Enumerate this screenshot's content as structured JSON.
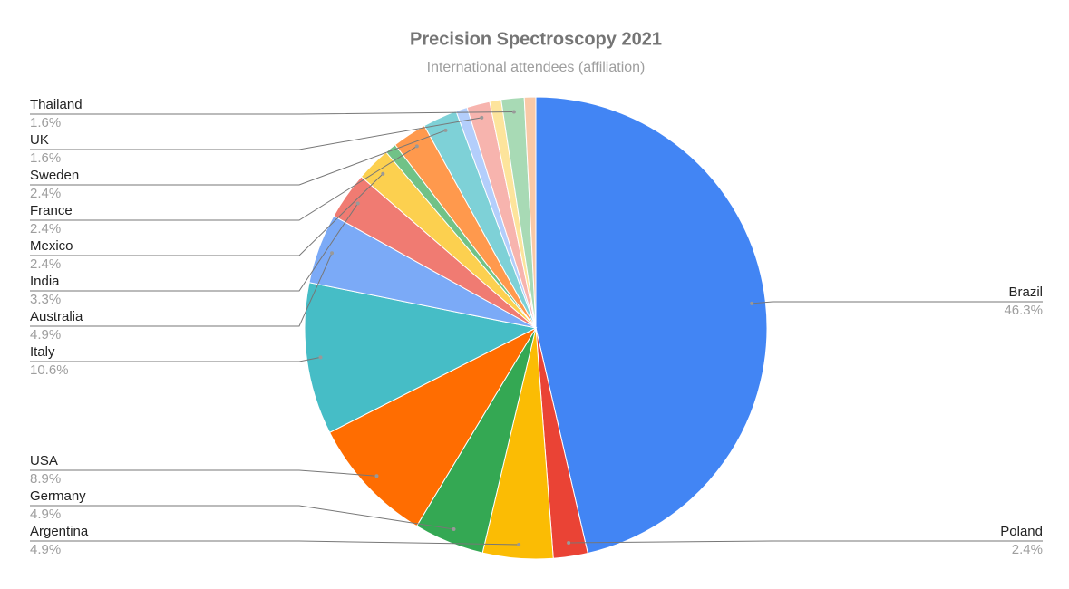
{
  "chart_data": {
    "type": "pie",
    "title": "Precision Spectroscopy 2021",
    "subtitle": "International attendees (affiliation)",
    "categories": [
      "Brazil",
      "Poland",
      "Argentina",
      "Germany",
      "USA",
      "Italy",
      "Australia",
      "India",
      "Mexico",
      null,
      "France",
      "Sweden",
      null,
      "UK",
      null,
      "Thailand",
      null
    ],
    "values": [
      46.3,
      2.4,
      4.9,
      4.9,
      8.9,
      10.6,
      4.9,
      3.3,
      2.4,
      0.8,
      2.4,
      2.4,
      0.8,
      1.6,
      0.8,
      1.6,
      0.8
    ],
    "value_labels": [
      "46.3%",
      "2.4%",
      "4.9%",
      "4.9%",
      "8.9%",
      "10.6%",
      "4.9%",
      "3.3%",
      "2.4%",
      null,
      "2.4%",
      "2.4%",
      null,
      "1.6%",
      null,
      "1.6%",
      null
    ],
    "colors": [
      "#4285f4",
      "#ea4335",
      "#fbbc04",
      "#34a853",
      "#ff6d01",
      "#46bdc6",
      "#7baaf7",
      "#f07b72",
      "#fcd04f",
      "#71c287",
      "#ff994d",
      "#7ed1d7",
      "#b3cefb",
      "#f7b4ae",
      "#fde49c",
      "#a8dab5",
      "#f9c9a7"
    ]
  }
}
